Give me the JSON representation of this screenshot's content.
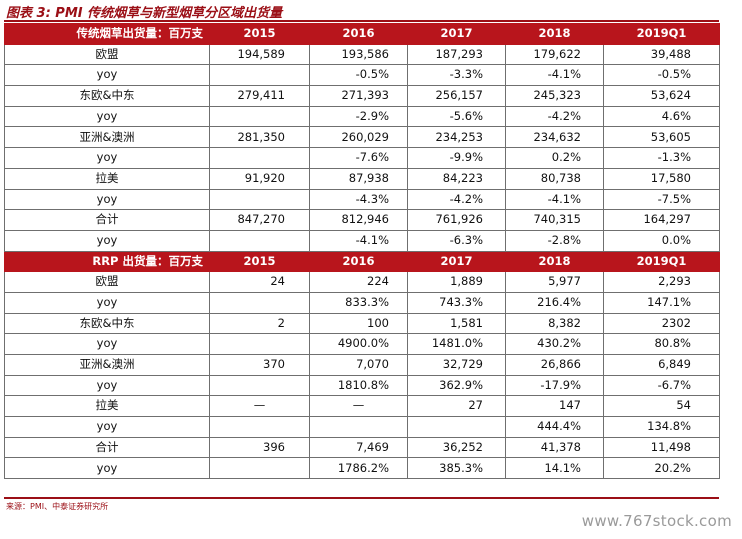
{
  "title": "图表 3: PMI 传统烟草与新型烟草分区域出货量",
  "source": "来源：PMI、中泰证券研究所",
  "watermark": "www.767stock.com",
  "sections": [
    {
      "header": [
        "传统烟草出货量：百万支",
        "2015",
        "2016",
        "2017",
        "2018",
        "2019Q1"
      ],
      "rows": [
        [
          "欧盟",
          "194,589",
          "193,586",
          "187,293",
          "179,622",
          "39,488"
        ],
        [
          "yoy",
          "",
          "-0.5%",
          "-3.3%",
          "-4.1%",
          "-0.5%"
        ],
        [
          "东欧&中东",
          "279,411",
          "271,393",
          "256,157",
          "245,323",
          "53,624"
        ],
        [
          "yoy",
          "",
          "-2.9%",
          "-5.6%",
          "-4.2%",
          "4.6%"
        ],
        [
          "亚洲&澳洲",
          "281,350",
          "260,029",
          "234,253",
          "234,632",
          "53,605"
        ],
        [
          "yoy",
          "",
          "-7.6%",
          "-9.9%",
          "0.2%",
          "-1.3%"
        ],
        [
          "拉美",
          "91,920",
          "87,938",
          "84,223",
          "80,738",
          "17,580"
        ],
        [
          "yoy",
          "",
          "-4.3%",
          "-4.2%",
          "-4.1%",
          "-7.5%"
        ],
        [
          "合计",
          "847,270",
          "812,946",
          "761,926",
          "740,315",
          "164,297"
        ],
        [
          "yoy",
          "",
          "-4.1%",
          "-6.3%",
          "-2.8%",
          "0.0%"
        ]
      ]
    },
    {
      "header": [
        "RRP 出货量：百万支",
        "2015",
        "2016",
        "2017",
        "2018",
        "2019Q1"
      ],
      "rows": [
        [
          "欧盟",
          "24",
          "224",
          "1,889",
          "5,977",
          "2,293"
        ],
        [
          "yoy",
          "",
          "833.3%",
          "743.3%",
          "216.4%",
          "147.1%"
        ],
        [
          "东欧&中东",
          "2",
          "100",
          "1,581",
          "8,382",
          "2302"
        ],
        [
          "yoy",
          "",
          "4900.0%",
          "1481.0%",
          "430.2%",
          "80.8%"
        ],
        [
          "亚洲&澳洲",
          "370",
          "7,070",
          "32,729",
          "26,866",
          "6,849"
        ],
        [
          "yoy",
          "",
          "1810.8%",
          "362.9%",
          "-17.9%",
          "-6.7%"
        ],
        [
          "拉美",
          "—",
          "—",
          "27",
          "147",
          "54"
        ],
        [
          "yoy",
          "",
          "",
          "",
          "444.4%",
          "134.8%"
        ],
        [
          "合计",
          "396",
          "7,469",
          "36,252",
          "41,378",
          "11,498"
        ],
        [
          "yoy",
          "",
          "1786.2%",
          "385.3%",
          "14.1%",
          "20.2%"
        ]
      ]
    }
  ]
}
